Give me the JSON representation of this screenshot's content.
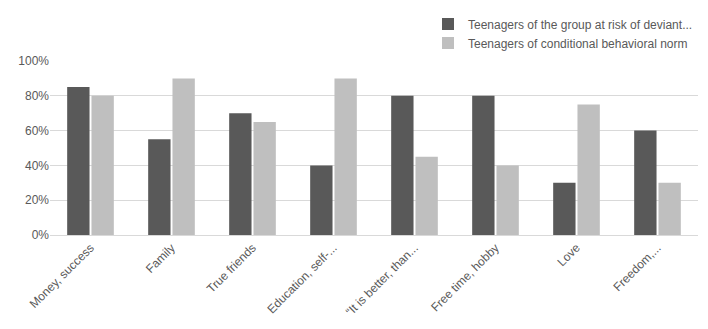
{
  "chart_data": {
    "type": "bar",
    "categories": [
      "Money, success",
      "Family",
      "True friends",
      "Education, self-...",
      "“It is better, than...",
      "Free time, hobby",
      "Love",
      "Freedom,..."
    ],
    "series": [
      {
        "name": "Teenagers of the group at risk of deviant...",
        "color": "#595959",
        "values": [
          85,
          55,
          70,
          40,
          80,
          80,
          30,
          60
        ]
      },
      {
        "name": "Teenagers of conditional behavioral norm",
        "color": "#bfbfbf",
        "values": [
          80,
          90,
          65,
          90,
          45,
          40,
          75,
          30
        ]
      }
    ],
    "ylim": [
      0,
      100
    ],
    "yticks": [
      {
        "value": 0,
        "label": "0%"
      },
      {
        "value": 20,
        "label": "20%"
      },
      {
        "value": 40,
        "label": "40%"
      },
      {
        "value": 60,
        "label": "60%"
      },
      {
        "value": 80,
        "label": "80%"
      },
      {
        "value": 100,
        "label": "100%"
      }
    ],
    "grid": true,
    "legend": "top right"
  }
}
